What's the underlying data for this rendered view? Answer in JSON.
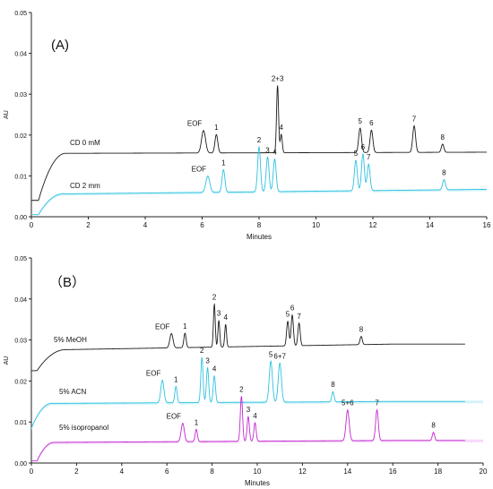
{
  "colors": {
    "black": "#1a1a1a",
    "cyan": "#2fc2e0",
    "cyan_fill": "#b9ecf7",
    "magenta": "#c22ad0",
    "magenta_fill": "#f0c2f4",
    "axis": "#222222"
  },
  "chart_data": [
    {
      "type": "line",
      "panel_label": "(A)",
      "xlabel": "Minutes",
      "ylabel": "AU",
      "xlim": [
        0,
        16
      ],
      "ylim": [
        0,
        0.05
      ],
      "x_ticks": [
        "0",
        "2",
        "4",
        "6",
        "8",
        "10",
        "12",
        "14",
        "16"
      ],
      "y_ticks": [
        "0.00",
        "0.01",
        "0.02",
        "0.03",
        "0.04",
        "0.05"
      ],
      "grid": false,
      "series": [
        {
          "name": "CD 0 mM",
          "color": "#1a1a1a",
          "baseline": 0.0155,
          "rise_start": 0.25,
          "rise_end": 1.2,
          "rise_from": 0.004,
          "drift": 0.0003,
          "peaks": [
            {
              "label": "EOF",
              "x": 6.05,
              "h": 0.0055,
              "w": 0.07
            },
            {
              "label": "1",
              "x": 6.5,
              "h": 0.0045,
              "w": 0.05
            },
            {
              "label": "2+3",
              "x": 8.65,
              "h": 0.0165,
              "w": 0.035
            },
            {
              "label": "4",
              "x": 8.78,
              "h": 0.0045,
              "w": 0.035
            },
            {
              "label": "5",
              "x": 11.55,
              "h": 0.006,
              "w": 0.05
            },
            {
              "label": "6",
              "x": 11.95,
              "h": 0.0055,
              "w": 0.05
            },
            {
              "label": "7",
              "x": 13.45,
              "h": 0.0065,
              "w": 0.05
            },
            {
              "label": "8",
              "x": 14.45,
              "h": 0.002,
              "w": 0.045
            }
          ]
        },
        {
          "name": "CD 2 mm",
          "color": "#2fc2e0",
          "baseline": 0.0055,
          "rise_start": 0.25,
          "rise_end": 1.1,
          "rise_from": 0.0005,
          "drift": 0.0012,
          "peaks": [
            {
              "label": "EOF",
              "x": 6.2,
              "h": 0.004,
              "w": 0.07
            },
            {
              "label": "1",
              "x": 6.75,
              "h": 0.0055,
              "w": 0.05
            },
            {
              "label": "2",
              "x": 8.0,
              "h": 0.011,
              "w": 0.05
            },
            {
              "label": "3",
              "x": 8.3,
              "h": 0.0085,
              "w": 0.05
            },
            {
              "label": "4",
              "x": 8.55,
              "h": 0.008,
              "w": 0.05
            },
            {
              "label": "5",
              "x": 11.4,
              "h": 0.0075,
              "w": 0.05
            },
            {
              "label": "6",
              "x": 11.65,
              "h": 0.009,
              "w": 0.05
            },
            {
              "label": "7",
              "x": 11.85,
              "h": 0.0065,
              "w": 0.05
            },
            {
              "label": "8",
              "x": 14.5,
              "h": 0.0025,
              "w": 0.05
            }
          ]
        }
      ]
    },
    {
      "type": "line",
      "panel_label": "（B）",
      "xlabel": "Minutes",
      "ylabel": "AU",
      "xlim": [
        0,
        20
      ],
      "ylim": [
        0,
        0.05
      ],
      "x_ticks": [
        "0",
        "2",
        "4",
        "6",
        "8",
        "10",
        "12",
        "14",
        "16",
        "18",
        "20"
      ],
      "y_ticks": [
        "0.00",
        "0.01",
        "0.02",
        "0.03",
        "0.04",
        "0.05"
      ],
      "grid": false,
      "series": [
        {
          "name": "5% MeOH",
          "color": "#1a1a1a",
          "baseline": 0.0275,
          "rise_start": 0.25,
          "rise_end": 1.5,
          "rise_from": 0.0225,
          "drift": 0.0015,
          "peaks": [
            {
              "label": "EOF",
              "x": 6.2,
              "h": 0.0035,
              "w": 0.07
            },
            {
              "label": "1",
              "x": 6.8,
              "h": 0.0035,
              "w": 0.05
            },
            {
              "label": "2",
              "x": 8.1,
              "h": 0.0105,
              "w": 0.04
            },
            {
              "label": "3",
              "x": 8.3,
              "h": 0.0065,
              "w": 0.04
            },
            {
              "label": "4",
              "x": 8.6,
              "h": 0.0055,
              "w": 0.04
            },
            {
              "label": "5",
              "x": 11.35,
              "h": 0.006,
              "w": 0.05
            },
            {
              "label": "6",
              "x": 11.55,
              "h": 0.0075,
              "w": 0.05
            },
            {
              "label": "7",
              "x": 11.85,
              "h": 0.0055,
              "w": 0.05
            },
            {
              "label": "8",
              "x": 14.6,
              "h": 0.002,
              "w": 0.05
            }
          ]
        },
        {
          "name": "5% ACN",
          "color": "#2fc2e0",
          "baseline": 0.0145,
          "rise_start": 0.0,
          "rise_end": 0.9,
          "rise_from": 0.0085,
          "drift": 0.0005,
          "peaks": [
            {
              "label": "EOF",
              "x": 5.8,
              "h": 0.0055,
              "w": 0.07
            },
            {
              "label": "1",
              "x": 6.4,
              "h": 0.004,
              "w": 0.05
            },
            {
              "label": "2",
              "x": 7.55,
              "h": 0.011,
              "w": 0.05
            },
            {
              "label": "3",
              "x": 7.8,
              "h": 0.0085,
              "w": 0.05
            },
            {
              "label": "4",
              "x": 8.1,
              "h": 0.0065,
              "w": 0.05
            },
            {
              "label": "5",
              "x": 10.6,
              "h": 0.01,
              "w": 0.07
            },
            {
              "label": "6+7",
              "x": 11.0,
              "h": 0.0095,
              "w": 0.07
            },
            {
              "label": "8",
              "x": 13.35,
              "h": 0.0025,
              "w": 0.05
            }
          ]
        },
        {
          "name": "5% isopropanol",
          "color": "#c22ad0",
          "baseline": 0.005,
          "rise_start": 0.25,
          "rise_end": 1.0,
          "rise_from": 0.0005,
          "drift": 0.0005,
          "peaks": [
            {
              "label": "EOF",
              "x": 6.7,
              "h": 0.0045,
              "w": 0.07
            },
            {
              "label": "1",
              "x": 7.3,
              "h": 0.003,
              "w": 0.05
            },
            {
              "label": "2",
              "x": 9.3,
              "h": 0.011,
              "w": 0.05
            },
            {
              "label": "3",
              "x": 9.6,
              "h": 0.006,
              "w": 0.05
            },
            {
              "label": "4",
              "x": 9.9,
              "h": 0.0045,
              "w": 0.05
            },
            {
              "label": "5+6",
              "x": 14.0,
              "h": 0.0075,
              "w": 0.07
            },
            {
              "label": "7",
              "x": 15.3,
              "h": 0.0075,
              "w": 0.06
            },
            {
              "label": "8",
              "x": 17.8,
              "h": 0.002,
              "w": 0.05
            }
          ]
        }
      ]
    }
  ]
}
